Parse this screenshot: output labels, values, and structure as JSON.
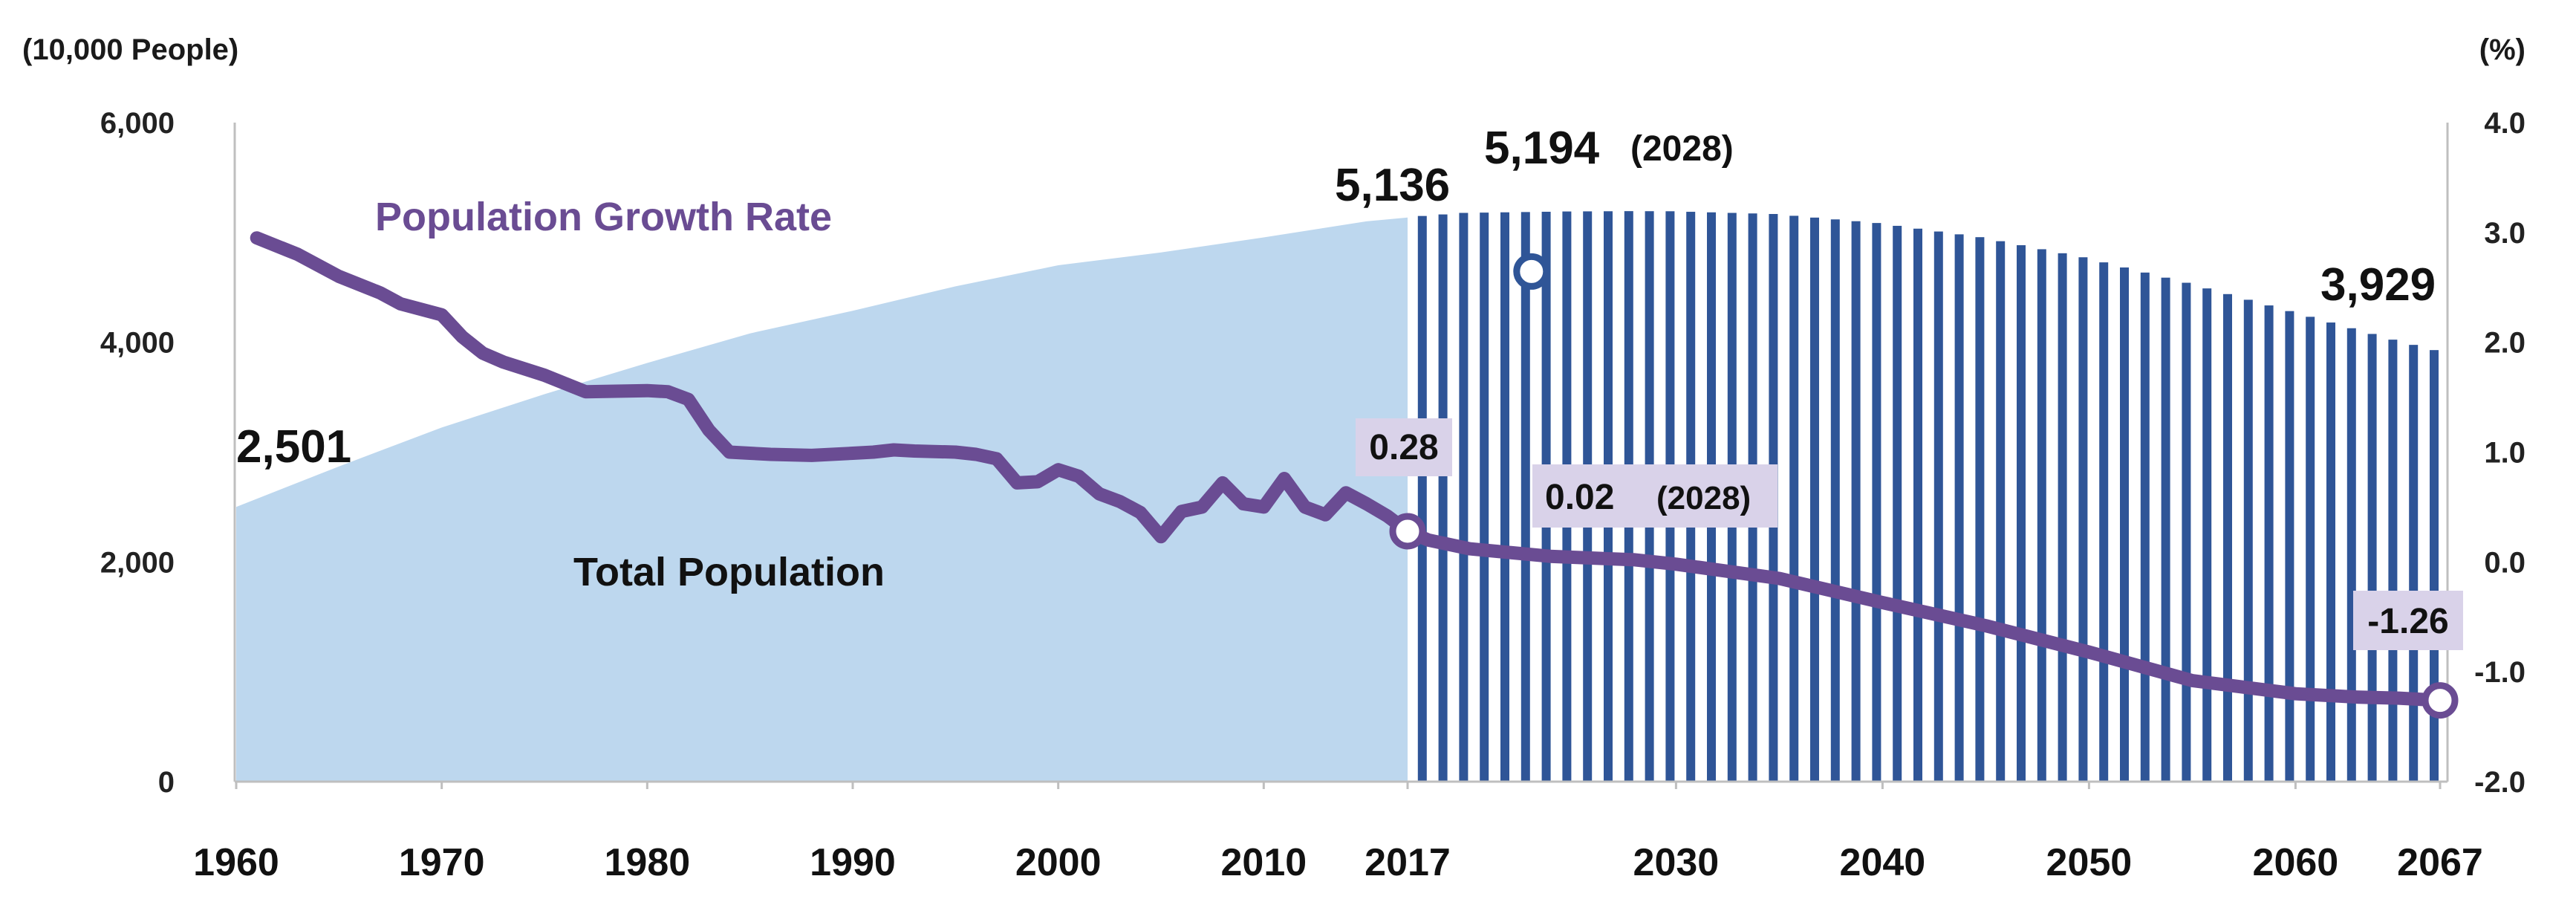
{
  "chart_data": {
    "type": "area+line",
    "left_axis": {
      "unit": "(10,000 People)",
      "ticks": [
        "6,000",
        "4,000",
        "2,000",
        "0"
      ],
      "range": [
        0,
        6000
      ]
    },
    "right_axis": {
      "unit": "(%)",
      "ticks": [
        "4.0",
        "3.0",
        "2.0",
        "1.0",
        "0.0",
        "-1.0",
        "-2.0"
      ],
      "range": [
        -2.0,
        4.0
      ]
    },
    "x_ticks": [
      "1960",
      "1970",
      "1980",
      "1990",
      "2000",
      "2010",
      "2017",
      "2030",
      "2040",
      "2050",
      "2060",
      "2067"
    ],
    "colors": {
      "area": "#bdd7ee",
      "projection": "#2f5597",
      "rate_line": "#6a4c93",
      "label_box": "#d9d2e9",
      "marker_outline": "#2f5597"
    },
    "total_population": {
      "name": "Total Population",
      "values": [
        [
          1960,
          2501
        ],
        [
          1965,
          2870
        ],
        [
          1970,
          3224
        ],
        [
          1975,
          3528
        ],
        [
          1980,
          3812
        ],
        [
          1985,
          4081
        ],
        [
          1990,
          4287
        ],
        [
          1995,
          4509
        ],
        [
          2000,
          4701
        ],
        [
          2005,
          4818
        ],
        [
          2010,
          4955
        ],
        [
          2015,
          5101
        ],
        [
          2017,
          5136
        ],
        [
          2020,
          5178
        ],
        [
          2025,
          5191
        ],
        [
          2028,
          5194
        ],
        [
          2030,
          5193
        ],
        [
          2035,
          5168
        ],
        [
          2040,
          5086
        ],
        [
          2045,
          4957
        ],
        [
          2050,
          4774
        ],
        [
          2055,
          4542
        ],
        [
          2060,
          4284
        ],
        [
          2065,
          4024
        ],
        [
          2067,
          3929
        ]
      ]
    },
    "growth_rate": {
      "name": "Population Growth Rate",
      "values": [
        [
          1961,
          2.95
        ],
        [
          1963,
          2.8
        ],
        [
          1965,
          2.6
        ],
        [
          1967,
          2.45
        ],
        [
          1968,
          2.35
        ],
        [
          1970,
          2.25
        ],
        [
          1971,
          2.05
        ],
        [
          1972,
          1.9
        ],
        [
          1973,
          1.82
        ],
        [
          1975,
          1.7
        ],
        [
          1977,
          1.55
        ],
        [
          1980,
          1.56
        ],
        [
          1981,
          1.55
        ],
        [
          1982,
          1.48
        ],
        [
          1983,
          1.2
        ],
        [
          1984,
          1.0
        ],
        [
          1985,
          0.99
        ],
        [
          1986,
          0.98
        ],
        [
          1988,
          0.97
        ],
        [
          1990,
          0.99
        ],
        [
          1991,
          1.0
        ],
        [
          1992,
          1.02
        ],
        [
          1993,
          1.01
        ],
        [
          1995,
          1.0
        ],
        [
          1996,
          0.98
        ],
        [
          1997,
          0.94
        ],
        [
          1998,
          0.72
        ],
        [
          1999,
          0.73
        ],
        [
          2000,
          0.84
        ],
        [
          2001,
          0.78
        ],
        [
          2002,
          0.62
        ],
        [
          2003,
          0.55
        ],
        [
          2004,
          0.45
        ],
        [
          2005,
          0.23
        ],
        [
          2006,
          0.46
        ],
        [
          2007,
          0.5
        ],
        [
          2008,
          0.72
        ],
        [
          2009,
          0.53
        ],
        [
          2010,
          0.5
        ],
        [
          2011,
          0.76
        ],
        [
          2012,
          0.5
        ],
        [
          2013,
          0.43
        ],
        [
          2014,
          0.63
        ],
        [
          2015,
          0.53
        ],
        [
          2016,
          0.42
        ],
        [
          2017,
          0.28
        ],
        [
          2018,
          0.2
        ],
        [
          2020,
          0.12
        ],
        [
          2024,
          0.05
        ],
        [
          2028,
          0.02
        ],
        [
          2030,
          -0.02
        ],
        [
          2035,
          -0.15
        ],
        [
          2040,
          -0.37
        ],
        [
          2045,
          -0.58
        ],
        [
          2050,
          -0.82
        ],
        [
          2055,
          -1.08
        ],
        [
          2060,
          -1.2
        ],
        [
          2063,
          -1.23
        ],
        [
          2065,
          -1.24
        ],
        [
          2067,
          -1.26
        ]
      ]
    },
    "annotations": {
      "start_population": "2,501",
      "population_2017": "5,136",
      "peak_population": "5,194",
      "peak_year": "(2028)",
      "end_population": "3,929",
      "rate_2017": "0.28",
      "rate_2028": "0.02",
      "rate_2028_year": "(2028)",
      "rate_2067": "-1.26"
    }
  }
}
